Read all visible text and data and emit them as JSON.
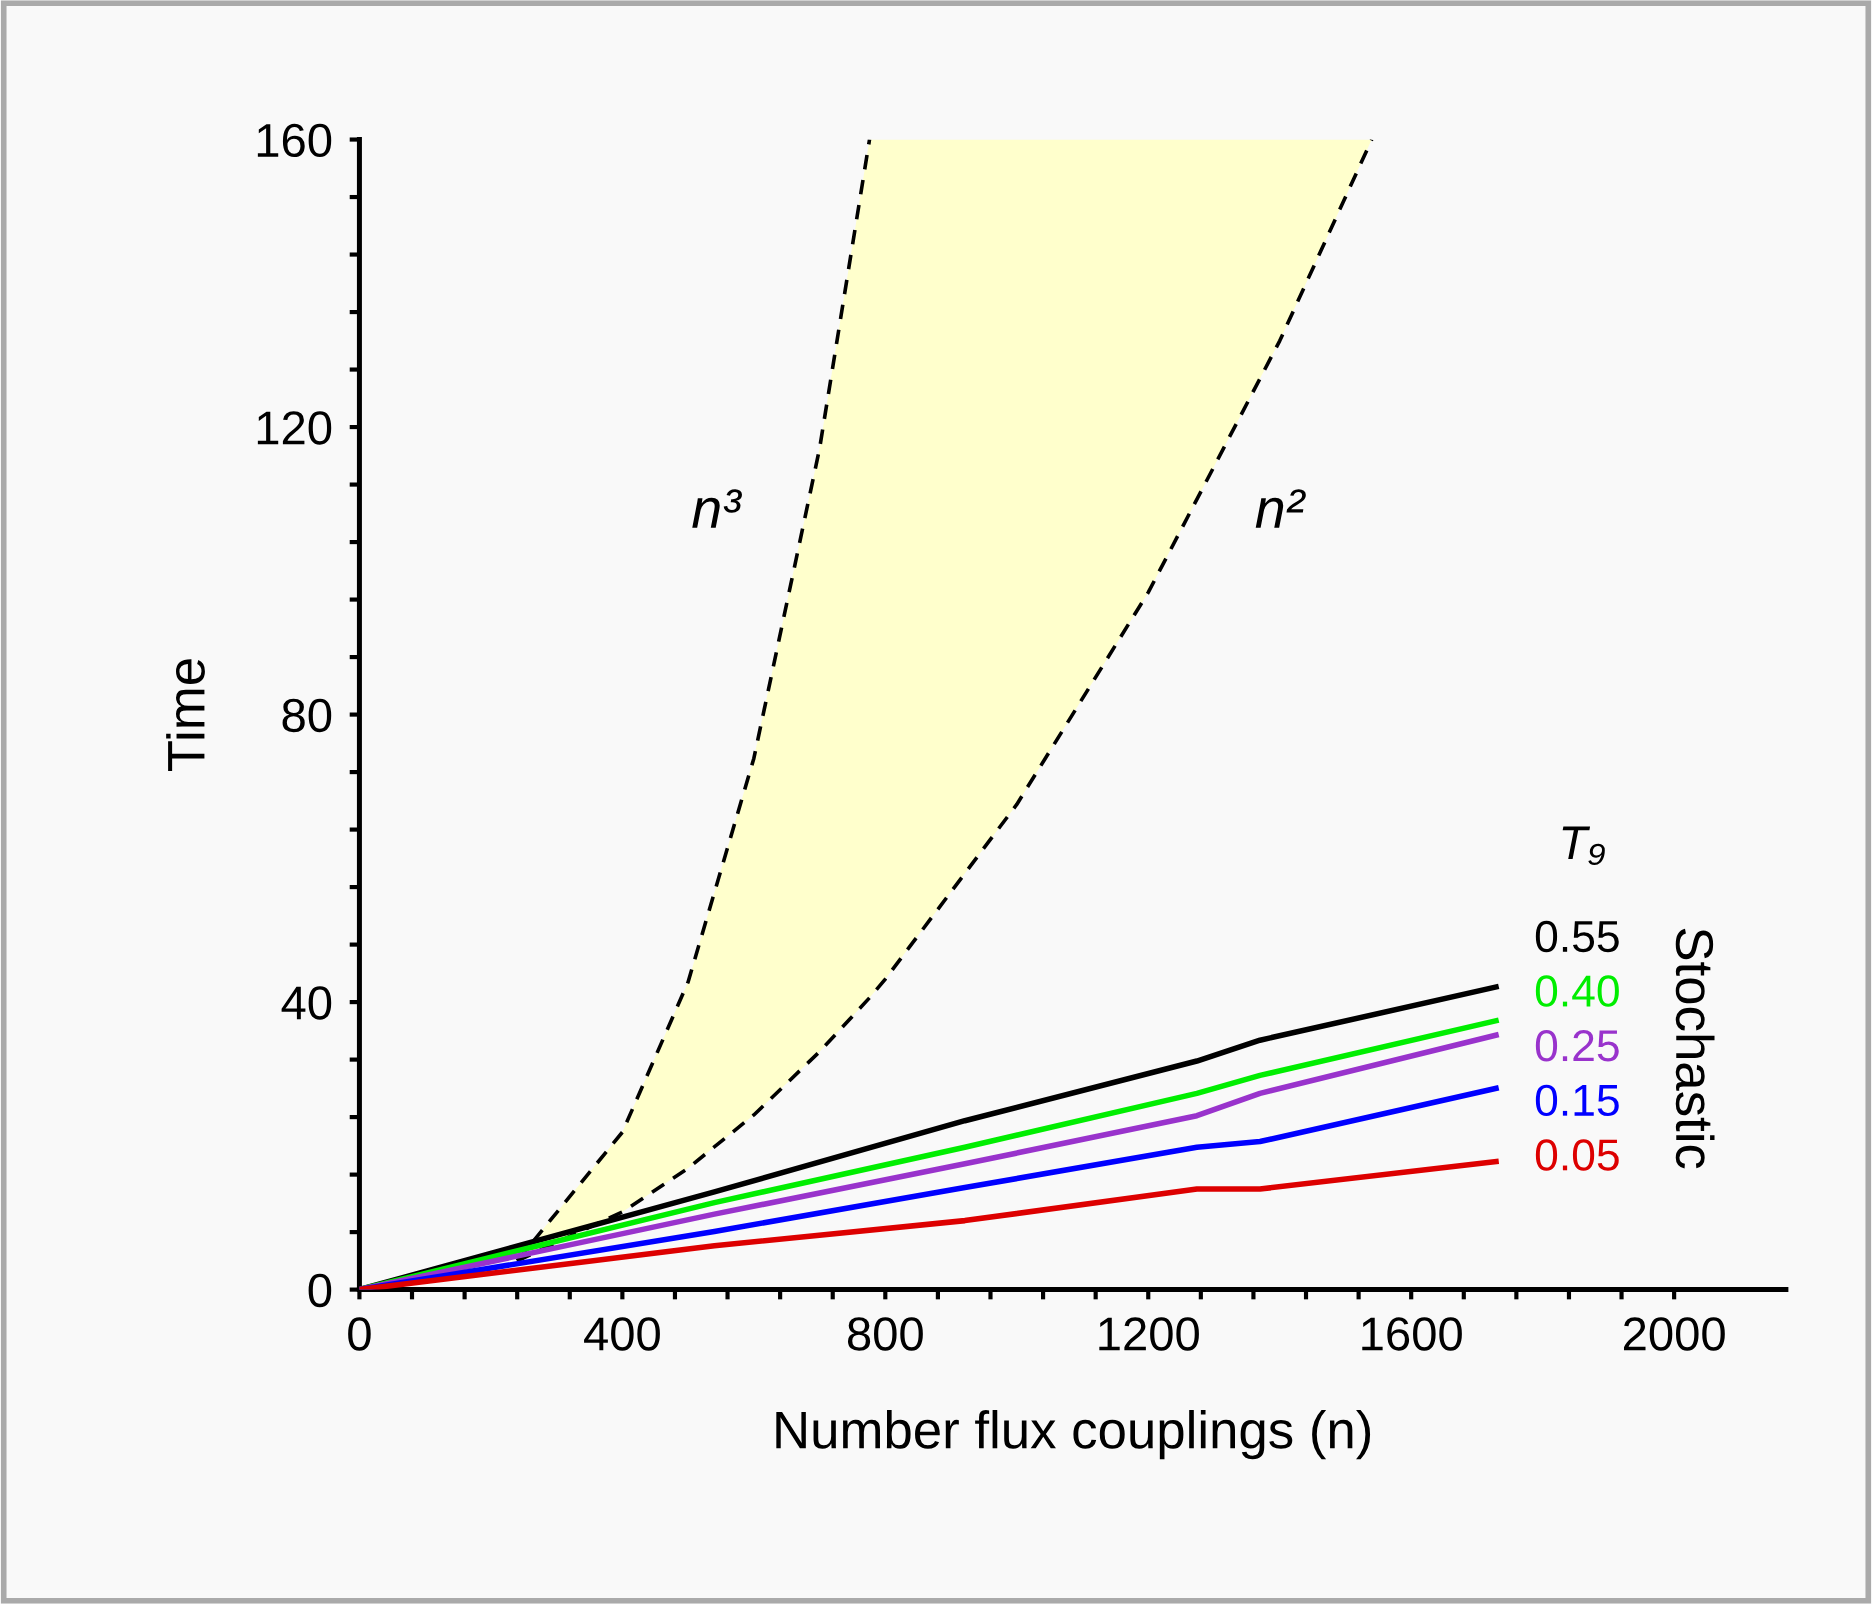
{
  "chart_data": {
    "type": "line",
    "xlabel": "Number flux couplings (n)",
    "ylabel": "Time",
    "legend_title": "T₉",
    "xlim": [
      0,
      2170
    ],
    "ylim": [
      0,
      160
    ],
    "xticks": [
      0,
      {
        "value": 80,
        "label": null
      },
      {
        "value": 160,
        "label": null
      },
      {
        "value": 240,
        "label": null
      },
      {
        "value": 320,
        "label": null
      },
      400,
      {
        "value": 480,
        "label": null
      },
      {
        "value": 560,
        "label": null
      },
      {
        "value": 640,
        "label": null
      },
      {
        "value": 720,
        "label": null
      },
      800,
      {
        "value": 880,
        "label": null
      },
      {
        "value": 960,
        "label": null
      },
      {
        "value": 1040,
        "label": null
      },
      {
        "value": 1120,
        "label": null
      },
      1200,
      {
        "value": 1280,
        "label": null
      },
      {
        "value": 1360,
        "label": null
      },
      {
        "value": 1440,
        "label": null
      },
      {
        "value": 1520,
        "label": null
      },
      1600,
      {
        "value": 1680,
        "label": null
      },
      {
        "value": 1760,
        "label": null
      },
      {
        "value": 1840,
        "label": null
      },
      {
        "value": 1920,
        "label": null
      },
      2000
    ],
    "yticks": [
      0,
      {
        "value": 8,
        "label": null
      },
      {
        "value": 16,
        "label": null
      },
      {
        "value": 24,
        "label": null
      },
      {
        "value": 32,
        "label": null
      },
      40,
      {
        "value": 48,
        "label": null
      },
      {
        "value": 56,
        "label": null
      },
      {
        "value": 64,
        "label": null
      },
      {
        "value": 72,
        "label": null
      },
      80,
      {
        "value": 88,
        "label": null
      },
      {
        "value": 96,
        "label": null
      },
      {
        "value": 104,
        "label": null
      },
      {
        "value": 112,
        "label": null
      },
      120,
      {
        "value": 128,
        "label": null
      },
      {
        "value": 136,
        "label": null
      },
      {
        "value": 144,
        "label": null
      },
      {
        "value": 152,
        "label": null
      },
      160
    ],
    "series": [
      {
        "type": "line",
        "color": "#000000",
        "line_style": "dashed",
        "x": [
          240,
          400,
          500,
          600,
          700,
          776,
          800,
          1000,
          1200,
          1400,
          1540
        ],
        "values": [
          4,
          10.8,
          16.9,
          24.3,
          33.1,
          40.6,
          43.2,
          67.5,
          97,
          132,
          160
        ],
        "lower": [
          4,
          10.8,
          16.9,
          24.3,
          33.1,
          40.6,
          43.2,
          67.5,
          97,
          132,
          160
        ],
        "upper": [
          4,
          21.9,
          42.8,
          73.9,
          117,
          160,
          160,
          160,
          160,
          160,
          160
        ]
      },
      {
        "type": "line",
        "color": "#000000",
        "line_style": "dashed",
        "x": [
          240,
          400,
          500,
          600,
          700,
          776
        ],
        "values": [
          4,
          21.9,
          42.8,
          73.9,
          117,
          160
        ]
      },
      {
        "name": "0.55",
        "color": "#000000",
        "x": [
          0,
          540,
          921,
          1274,
          1370,
          1729
        ],
        "values": [
          0,
          13.6,
          23.5,
          31.8,
          34.7,
          42.1
        ]
      },
      {
        "name": "0.40",
        "color": "#00ee00",
        "x": [
          0,
          540,
          921,
          1274,
          1370,
          1729
        ],
        "values": [
          0,
          12.1,
          19.8,
          27.3,
          29.8,
          37.4
        ]
      },
      {
        "name": "0.25",
        "color": "#9933cc",
        "x": [
          0,
          540,
          921,
          1274,
          1370,
          1729
        ],
        "values": [
          0,
          10.5,
          17.5,
          24.2,
          27.3,
          35.4
        ]
      },
      {
        "name": "0.15",
        "color": "#0000ff",
        "x": [
          0,
          540,
          921,
          1274,
          1370,
          1729
        ],
        "values": [
          0,
          8.1,
          14.2,
          19.8,
          20.6,
          28.0
        ]
      },
      {
        "name": "0.05",
        "color": "#dd0000",
        "x": [
          0,
          540,
          921,
          1274,
          1370,
          1729
        ],
        "values": [
          0,
          6.1,
          9.6,
          14.0,
          14.0,
          17.8
        ]
      }
    ],
    "annotations": [
      "n³",
      "n²",
      "Stochastic"
    ]
  }
}
